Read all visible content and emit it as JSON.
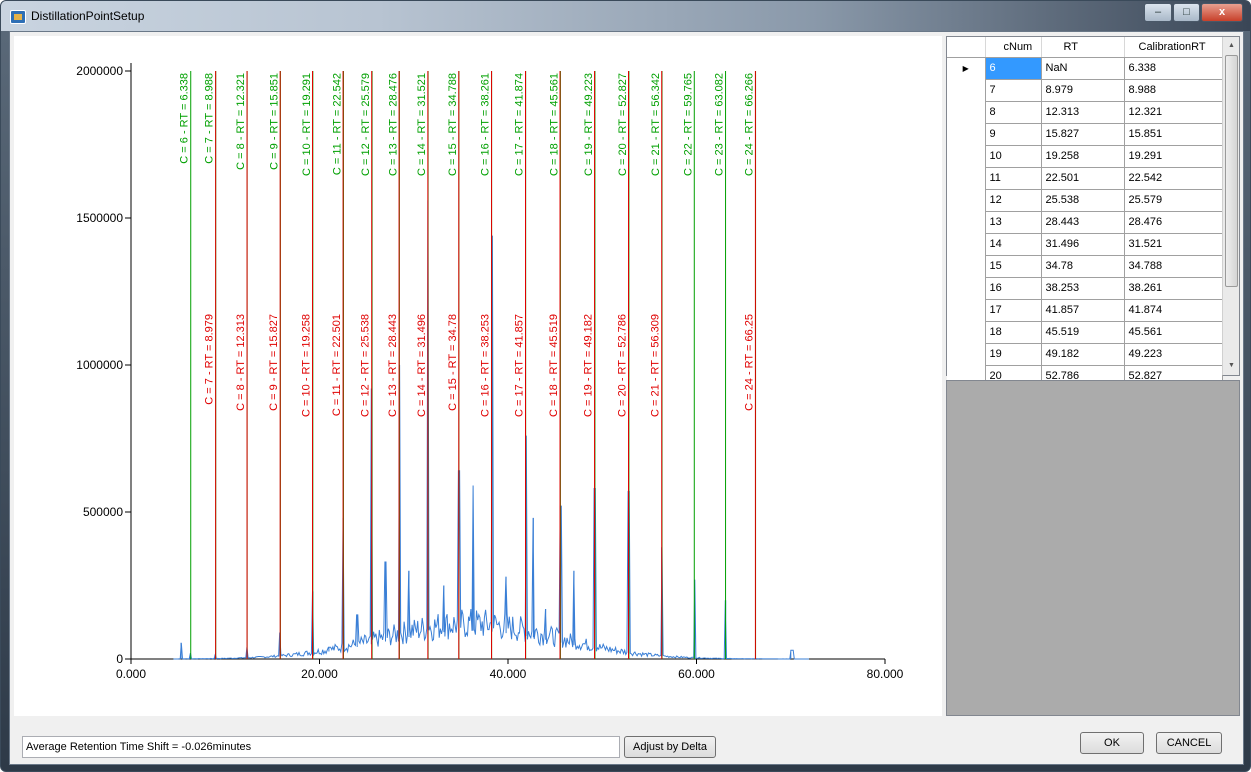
{
  "window": {
    "title": "DistillationPointSetup",
    "minimize": "–",
    "maximize": "□",
    "close": "x"
  },
  "chart_data": {
    "type": "line",
    "x_ticks": [
      "0.000",
      "20.000",
      "40.000",
      "60.000",
      "80.000"
    ],
    "y_ticks": [
      "0",
      "500000",
      "1000000",
      "1500000",
      "2000000"
    ],
    "xlim": [
      0,
      80
    ],
    "ylim": [
      0,
      2000000
    ],
    "grid": false,
    "green_markers": [
      {
        "rt": 6.338,
        "label": "C = 6 - RT = 6.338"
      },
      {
        "rt": 8.988,
        "label": "C = 7 - RT = 8.988"
      },
      {
        "rt": 12.321,
        "label": "C = 8 - RT = 12.321"
      },
      {
        "rt": 15.851,
        "label": "C = 9 - RT = 15.851"
      },
      {
        "rt": 19.291,
        "label": "C = 10 - RT = 19.291"
      },
      {
        "rt": 22.542,
        "label": "C = 11 - RT = 22.542"
      },
      {
        "rt": 25.579,
        "label": "C = 12 - RT = 25.579"
      },
      {
        "rt": 28.476,
        "label": "C = 13 - RT = 28.476"
      },
      {
        "rt": 31.521,
        "label": "C = 14 - RT = 31.521"
      },
      {
        "rt": 34.788,
        "label": "C = 15 - RT = 34.788"
      },
      {
        "rt": 38.261,
        "label": "C = 16 - RT = 38.261"
      },
      {
        "rt": 41.874,
        "label": "C = 17 - RT = 41.874"
      },
      {
        "rt": 45.561,
        "label": "C = 18 - RT = 45.561"
      },
      {
        "rt": 49.223,
        "label": "C = 19 - RT = 49.223"
      },
      {
        "rt": 52.827,
        "label": "C = 20 - RT = 52.827"
      },
      {
        "rt": 56.342,
        "label": "C = 21 - RT = 56.342"
      },
      {
        "rt": 59.765,
        "label": "C = 22 - RT = 59.765"
      },
      {
        "rt": 63.082,
        "label": "C = 23 - RT = 63.082"
      },
      {
        "rt": 66.266,
        "label": "C = 24 - RT = 66.266"
      }
    ],
    "red_markers": [
      {
        "rt": 8.979,
        "label": "C = 7 - RT = 8.979"
      },
      {
        "rt": 12.313,
        "label": "C = 8 - RT = 12.313"
      },
      {
        "rt": 15.827,
        "label": "C = 9 - RT = 15.827"
      },
      {
        "rt": 19.258,
        "label": "C = 10 - RT = 19.258"
      },
      {
        "rt": 22.501,
        "label": "C = 11 - RT = 22.501"
      },
      {
        "rt": 25.538,
        "label": "C = 12 - RT = 25.538"
      },
      {
        "rt": 28.443,
        "label": "C = 13 - RT = 28.443"
      },
      {
        "rt": 31.496,
        "label": "C = 14 - RT = 31.496"
      },
      {
        "rt": 34.78,
        "label": "C = 15 - RT = 34.78"
      },
      {
        "rt": 38.253,
        "label": "C = 16 - RT = 38.253"
      },
      {
        "rt": 41.857,
        "label": "C = 17 - RT = 41.857"
      },
      {
        "rt": 45.519,
        "label": "C = 18 - RT = 45.519"
      },
      {
        "rt": 49.182,
        "label": "C = 19 - RT = 49.182"
      },
      {
        "rt": 52.786,
        "label": "C = 20 - RT = 52.786"
      },
      {
        "rt": 56.309,
        "label": "C = 21 - RT = 56.309"
      },
      {
        "rt": 66.25,
        "label": "C = 24 - RT = 66.25"
      }
    ],
    "peaks": [
      [
        5.3,
        55000
      ],
      [
        6.3,
        20000
      ],
      [
        8.9,
        15000
      ],
      [
        12.3,
        40000
      ],
      [
        15.8,
        90000
      ],
      [
        19.3,
        230000
      ],
      [
        21.0,
        40000
      ],
      [
        22.5,
        480000
      ],
      [
        24.0,
        150000
      ],
      [
        25.5,
        920000
      ],
      [
        27.0,
        330000
      ],
      [
        28.5,
        1000000
      ],
      [
        29.5,
        300000
      ],
      [
        31.5,
        1560000
      ],
      [
        33.2,
        250000
      ],
      [
        34.8,
        640000
      ],
      [
        36.3,
        590000
      ],
      [
        38.3,
        1440000
      ],
      [
        39.8,
        280000
      ],
      [
        41.9,
        760000
      ],
      [
        42.7,
        480000
      ],
      [
        44.0,
        170000
      ],
      [
        45.6,
        520000
      ],
      [
        47.0,
        300000
      ],
      [
        49.2,
        580000
      ],
      [
        52.8,
        570000
      ],
      [
        56.3,
        380000
      ],
      [
        59.8,
        270000
      ],
      [
        63.1,
        200000
      ],
      [
        70.0,
        30000
      ]
    ],
    "colors": {
      "green": "#00a000",
      "red": "#e00000",
      "series": "#3a7fd6"
    }
  },
  "grid": {
    "columns": [
      "cNum",
      "RT",
      "CalibrationRT"
    ],
    "rows": [
      [
        "6",
        "NaN",
        "6.338"
      ],
      [
        "7",
        "8.979",
        "8.988"
      ],
      [
        "8",
        "12.313",
        "12.321"
      ],
      [
        "9",
        "15.827",
        "15.851"
      ],
      [
        "10",
        "19.258",
        "19.291"
      ],
      [
        "11",
        "22.501",
        "22.542"
      ],
      [
        "12",
        "25.538",
        "25.579"
      ],
      [
        "13",
        "28.443",
        "28.476"
      ],
      [
        "14",
        "31.496",
        "31.521"
      ],
      [
        "15",
        "34.78",
        "34.788"
      ],
      [
        "16",
        "38.253",
        "38.261"
      ],
      [
        "17",
        "41.857",
        "41.874"
      ],
      [
        "18",
        "45.519",
        "45.561"
      ],
      [
        "19",
        "49.182",
        "49.223"
      ],
      [
        "20",
        "52.786",
        "52.827"
      ]
    ],
    "selected_row": 0
  },
  "status": {
    "text": "Average Retention Time Shift = -0.026minutes"
  },
  "buttons": {
    "adjust": "Adjust by Delta",
    "ok": "OK",
    "cancel": "CANCEL"
  }
}
